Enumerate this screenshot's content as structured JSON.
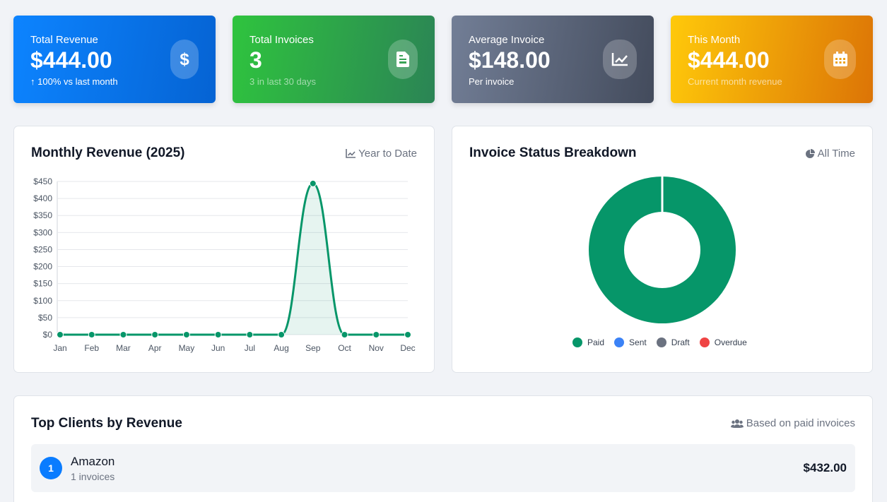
{
  "cards": [
    {
      "label": "Total Revenue",
      "value": "$444.00",
      "sub": "100% vs last month",
      "icon": "dollar-icon"
    },
    {
      "label": "Total Invoices",
      "value": "3",
      "sub": "3 in last 30 days",
      "icon": "invoice-icon"
    },
    {
      "label": "Average Invoice",
      "value": "$148.00",
      "sub": "Per invoice",
      "icon": "chart-line-icon"
    },
    {
      "label": "This Month",
      "value": "$444.00",
      "sub": "Current month revenue",
      "icon": "calendar-icon"
    }
  ],
  "monthly": {
    "title": "Monthly Revenue (2025)",
    "note": "Year to Date"
  },
  "status": {
    "title": "Invoice Status Breakdown",
    "note": "All Time"
  },
  "clients": {
    "title": "Top Clients by Revenue",
    "note": "Based on paid invoices",
    "items": [
      {
        "rank": "1",
        "name": "Amazon",
        "count": "1 invoices",
        "amount": "$432.00"
      }
    ]
  },
  "colors": {
    "paid": "#069669",
    "sent": "#3b82f6",
    "draft": "#6b7280",
    "overdue": "#ef4444"
  },
  "chart_data": [
    {
      "type": "area",
      "categories": [
        "Jan",
        "Feb",
        "Mar",
        "Apr",
        "May",
        "Jun",
        "Jul",
        "Aug",
        "Sep",
        "Oct",
        "Nov",
        "Dec"
      ],
      "values": [
        0,
        0,
        0,
        0,
        0,
        0,
        0,
        0,
        444,
        0,
        0,
        0
      ],
      "ylim": [
        0,
        450
      ],
      "yticks": [
        "$0",
        "$50",
        "$100",
        "$150",
        "$200",
        "$250",
        "$300",
        "$350",
        "$400",
        "$450"
      ],
      "ytick_values": [
        0,
        50,
        100,
        150,
        200,
        250,
        300,
        350,
        400,
        450
      ],
      "grid": true,
      "color": "#069669"
    },
    {
      "type": "pie",
      "donut": true,
      "categories": [
        "Paid",
        "Sent",
        "Draft",
        "Overdue"
      ],
      "values": [
        3,
        0,
        0,
        0
      ],
      "legend": "bottom"
    }
  ]
}
